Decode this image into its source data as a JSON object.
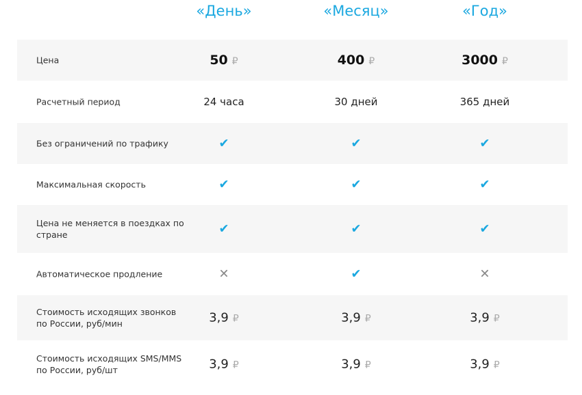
{
  "plans": [
    "«День»",
    "«Месяц»",
    "«Год»"
  ],
  "currency": "₽",
  "rows": [
    {
      "label": "Цена",
      "type": "price",
      "values": [
        "50",
        "400",
        "3000"
      ]
    },
    {
      "label": "Расчетный период",
      "type": "text",
      "values": [
        "24 часа",
        "30 дней",
        "365 дней"
      ]
    },
    {
      "label": "Без ограничений по трафику",
      "type": "bool",
      "values": [
        true,
        true,
        true
      ]
    },
    {
      "label": "Максимальная скорость",
      "type": "bool",
      "values": [
        true,
        true,
        true
      ]
    },
    {
      "label": "Цена не меняется в поездках по стране",
      "type": "bool",
      "values": [
        true,
        true,
        true
      ]
    },
    {
      "label": "Автоматическое продление",
      "type": "bool",
      "values": [
        false,
        true,
        false
      ]
    },
    {
      "label": "Стоимость исходящих звонков по России, руб/мин",
      "type": "money",
      "values": [
        "3,9",
        "3,9",
        "3,9"
      ]
    },
    {
      "label": "Стоимость исходящих SMS/MMS по России, руб/шт",
      "type": "money",
      "values": [
        "3,9",
        "3,9",
        "3,9"
      ]
    }
  ],
  "colors": {
    "accent": "#1ba8e0",
    "stripe": "#f6f6f6"
  },
  "icons": {
    "yes": "check-icon",
    "no": "cross-icon"
  }
}
